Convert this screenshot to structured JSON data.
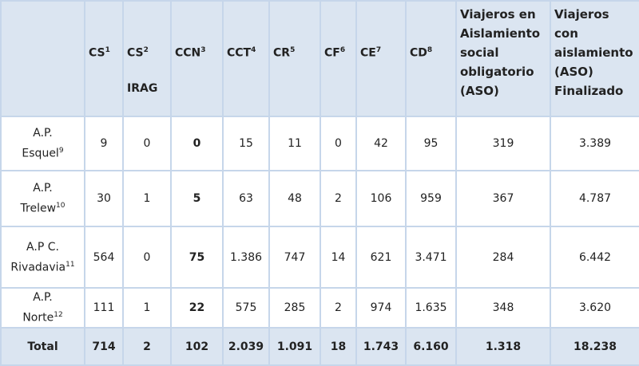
{
  "table": {
    "header": [
      {
        "label": "CS",
        "sup": "1"
      },
      {
        "label": "CS",
        "sup": "2",
        "line2": "IRAG"
      },
      {
        "label": "CCN",
        "sup": "3"
      },
      {
        "label": "CCT",
        "sup": "4"
      },
      {
        "label": "CR",
        "sup": "5"
      },
      {
        "label": "CF",
        "sup": "6"
      },
      {
        "label": "CE",
        "sup": "7"
      },
      {
        "label": "CD",
        "sup": "8"
      },
      {
        "label": "Viajeros en Aislamiento social obligatorio (ASO)"
      },
      {
        "label": "Viajeros con aislamiento (ASO) Finalizado"
      }
    ],
    "rows": [
      {
        "label_lines": [
          "A.P.",
          "Esquel"
        ],
        "sup": "9",
        "values": [
          "9",
          "0",
          "0",
          "15",
          "11",
          "0",
          "42",
          "95",
          "319",
          "3.389"
        ]
      },
      {
        "label_lines": [
          "A.P.",
          "Trelew"
        ],
        "sup": "10",
        "values": [
          "30",
          "1",
          "5",
          "63",
          "48",
          "2",
          "106",
          "959",
          "367",
          "4.787"
        ]
      },
      {
        "label_lines": [
          "A.P C.",
          "Rivadavia"
        ],
        "sup": "11",
        "values": [
          "564",
          "0",
          "75",
          "1.386",
          "747",
          "14",
          "621",
          "3.471",
          "284",
          "6.442"
        ]
      },
      {
        "label_lines": [
          "A.P.",
          "Norte"
        ],
        "sup": "12",
        "values": [
          "111",
          "1",
          "22",
          "575",
          "285",
          "2",
          "974",
          "1.635",
          "348",
          "3.620"
        ]
      }
    ],
    "total": {
      "label": "Total",
      "values": [
        "714",
        "2",
        "102",
        "2.039",
        "1.091",
        "18",
        "1.743",
        "6.160",
        "1.318",
        "18.238"
      ]
    }
  }
}
